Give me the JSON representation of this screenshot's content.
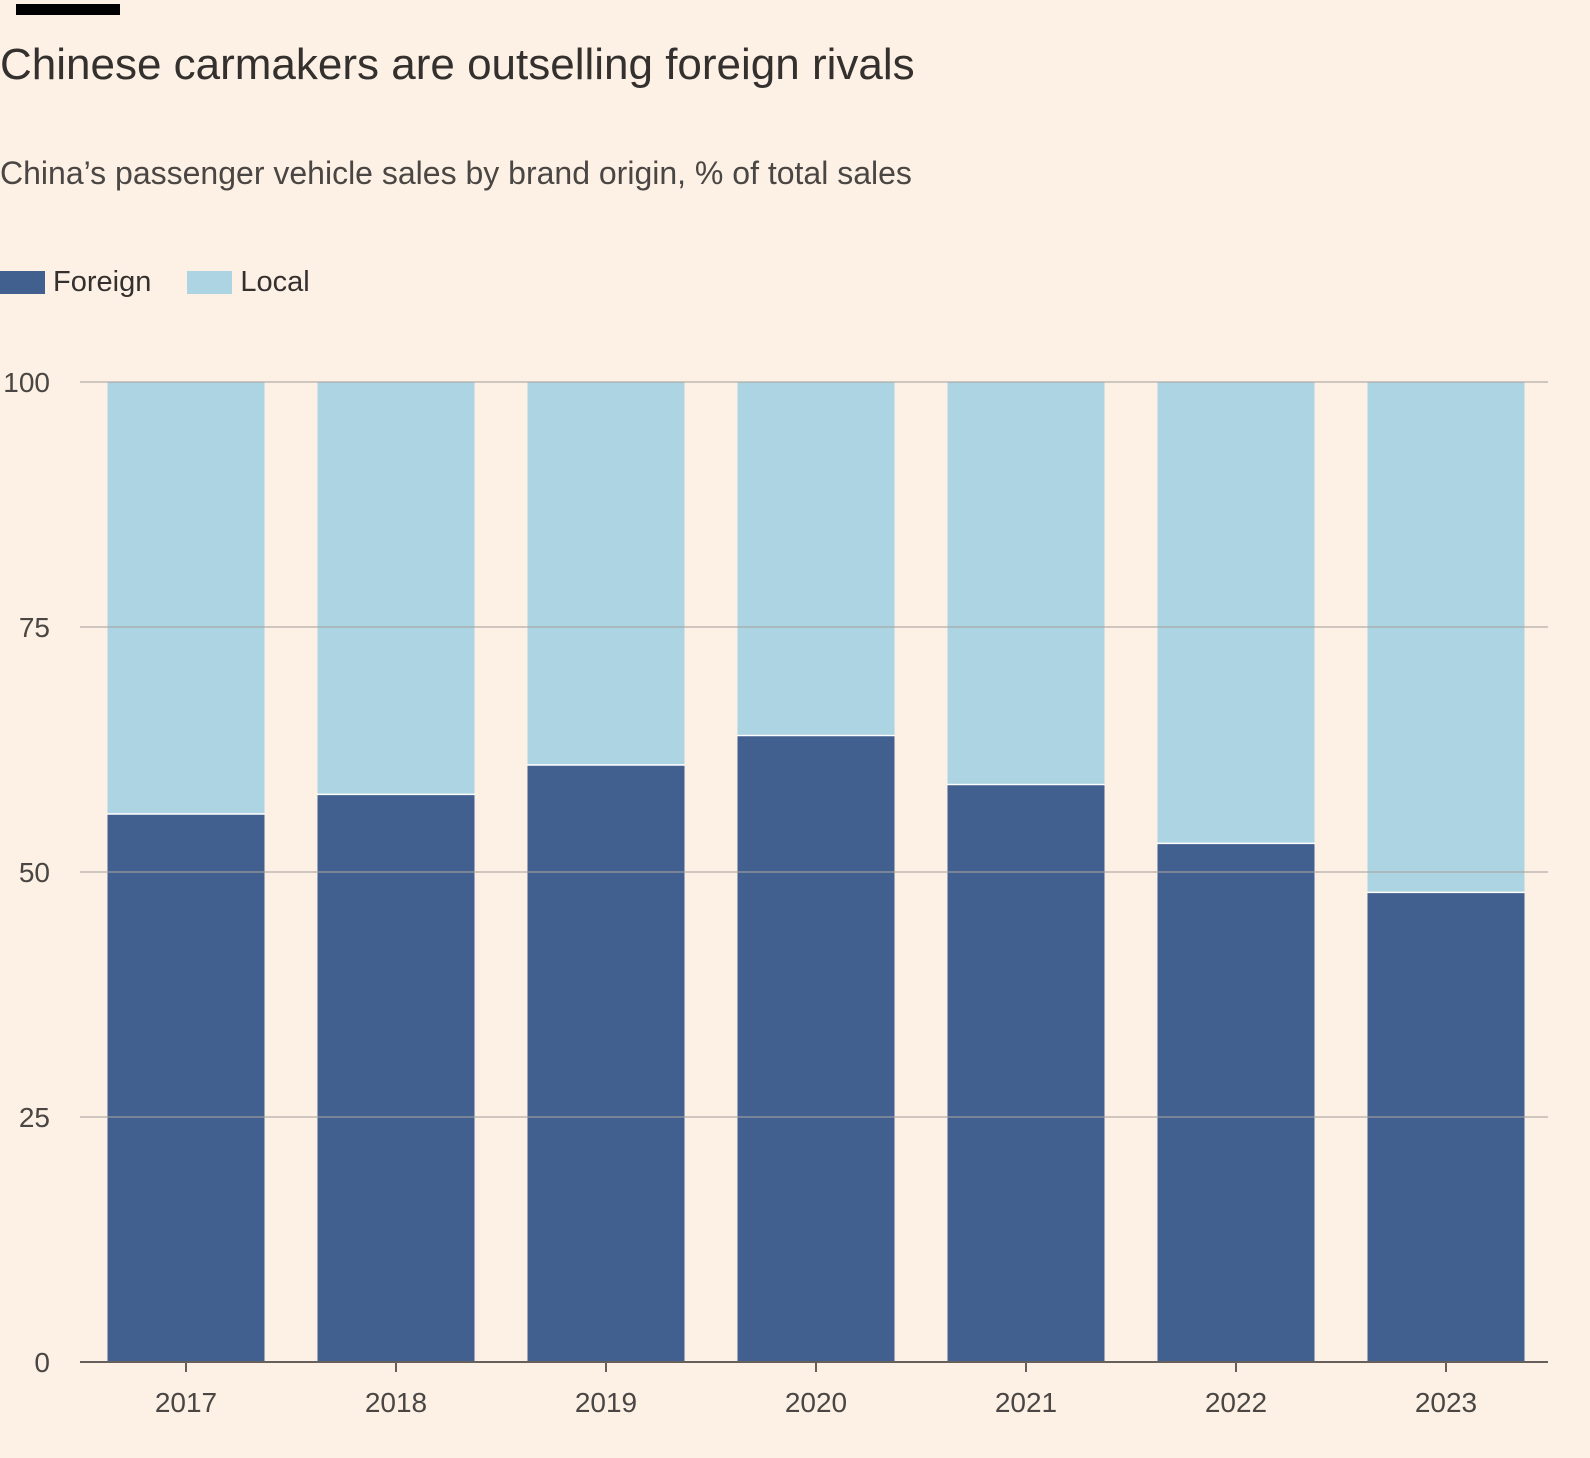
{
  "header": {
    "title": "Chinese carmakers are outselling foreign rivals",
    "subtitle": "China’s passenger vehicle sales by brand origin, % of total sales"
  },
  "legend": {
    "items": [
      {
        "label": "Foreign",
        "color": "#415f8f"
      },
      {
        "label": "Local",
        "color": "#acd4e3"
      }
    ],
    "placement": "top-left"
  },
  "chart_data": {
    "type": "bar",
    "stacked": true,
    "title": "Chinese carmakers are outselling foreign rivals",
    "subtitle": "China’s passenger vehicle sales by brand origin, % of total sales",
    "categories": [
      "2017",
      "2018",
      "2019",
      "2020",
      "2021",
      "2022",
      "2023"
    ],
    "series": [
      {
        "name": "Foreign",
        "color": "#415f8f",
        "values": [
          56,
          58,
          61,
          64,
          59,
          53,
          48
        ]
      },
      {
        "name": "Local",
        "color": "#acd4e3",
        "values": [
          44,
          42,
          39,
          36,
          41,
          47,
          52
        ]
      }
    ],
    "ylim": [
      0,
      100
    ],
    "yticks": [
      "0",
      "25",
      "50",
      "75",
      "100"
    ],
    "xlabel": "",
    "ylabel": "",
    "grid": true,
    "legend_placement": "top-left"
  }
}
